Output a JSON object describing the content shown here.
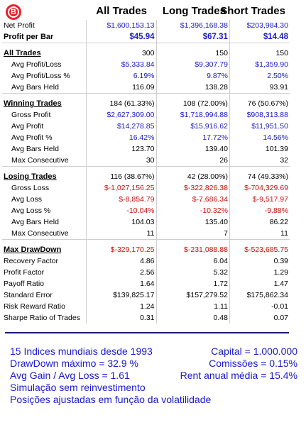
{
  "logo": {
    "letter": "B"
  },
  "headers": [
    "All Trades",
    "Long Trades",
    "Short Trades"
  ],
  "top": [
    {
      "label": "Net Profit",
      "values": [
        "$1,600,153.13",
        "$1,396,168.38",
        "$203,984.30"
      ],
      "color": "blue"
    },
    {
      "label": "Profit per Bar",
      "values": [
        "$45.94",
        "$67.31",
        "$14.48"
      ],
      "color": "blue"
    }
  ],
  "sections": [
    {
      "title": "All Trades",
      "title_values": [
        "300",
        "150",
        "150"
      ],
      "rows": [
        {
          "label": "Avg Profit/Loss",
          "values": [
            "$5,333.84",
            "$9,307.79",
            "$1,359.90"
          ],
          "color": "blue"
        },
        {
          "label": "Avg Profit/Loss %",
          "values": [
            "6.19%",
            "9.87%",
            "2.50%"
          ],
          "color": "blue"
        },
        {
          "label": "Avg Bars Held",
          "values": [
            "116.09",
            "138.28",
            "93.91"
          ],
          "color": "black"
        }
      ]
    },
    {
      "title": "Winning Trades",
      "title_values": [
        "184 (61.33%)",
        "108 (72.00%)",
        "76 (50.67%)"
      ],
      "rows": [
        {
          "label": "Gross Profit",
          "values": [
            "$2,627,309.00",
            "$1,718,994.88",
            "$908,313.88"
          ],
          "color": "blue"
        },
        {
          "label": "Avg Profit",
          "values": [
            "$14,278.85",
            "$15,916.62",
            "$11,951.50"
          ],
          "color": "blue"
        },
        {
          "label": "Avg Profit %",
          "values": [
            "16.42%",
            "17.72%",
            "14.56%"
          ],
          "color": "blue"
        },
        {
          "label": "Avg Bars Held",
          "values": [
            "123.70",
            "139.40",
            "101.39"
          ],
          "color": "black"
        },
        {
          "label": "Max Consecutive",
          "values": [
            "30",
            "26",
            "32"
          ],
          "color": "black"
        }
      ]
    },
    {
      "title": "Losing Trades",
      "title_values": [
        "116 (38.67%)",
        "42 (28.00%)",
        "74 (49.33%)"
      ],
      "rows": [
        {
          "label": "Gross Loss",
          "values": [
            "$-1,027,156.25",
            "$-322,826.38",
            "$-704,329.69"
          ],
          "color": "red"
        },
        {
          "label": "Avg Loss",
          "values": [
            "$-8,854.79",
            "$-7,686.34",
            "$-9,517.97"
          ],
          "color": "red"
        },
        {
          "label": "Avg Loss %",
          "values": [
            "-10.04%",
            "-10.32%",
            "-9.88%"
          ],
          "color": "red"
        },
        {
          "label": "Avg Bars Held",
          "values": [
            "104.03",
            "135.40",
            "86.22"
          ],
          "color": "black"
        },
        {
          "label": "Max Consecutive",
          "values": [
            "11",
            "7",
            "11"
          ],
          "color": "black"
        }
      ]
    }
  ],
  "bottom": [
    {
      "label": "Max DrawDown",
      "values": [
        "$-329,170.25",
        "$-231,088.88",
        "$-523,685.75"
      ],
      "color": "red"
    },
    {
      "label": "Recovery Factor",
      "values": [
        "4.86",
        "6.04",
        "0.39"
      ],
      "color": "black"
    },
    {
      "label": "Profit Factor",
      "values": [
        "2.56",
        "5.32",
        "1.29"
      ],
      "color": "black"
    },
    {
      "label": "Payoff Ratio",
      "values": [
        "1.64",
        "1.72",
        "1.47"
      ],
      "color": "black"
    },
    {
      "label": "Standard Error",
      "values": [
        "$139,825.17",
        "$157,279.52",
        "$175,862.34"
      ],
      "color": "black"
    },
    {
      "label": "Risk Reward Ratio",
      "values": [
        "1.24",
        "1.11",
        "-0.01"
      ],
      "color": "black"
    },
    {
      "label": "Sharpe Ratio of Trades",
      "values": [
        "0.31",
        "0.48",
        "0.07"
      ],
      "color": "black"
    }
  ],
  "notes": {
    "line1_left": "15 Indices mundiais desde 1993",
    "line1_right": "Capital = 1.000.000",
    "line2_left": "DrawDown máximo = 32.9 %",
    "line2_right": "Comissões = 0.15%",
    "line3_left": "Avg Gain / Avg Loss = 1.61",
    "line3_right": "Rent anual média = 15.4%",
    "line4": "Simulação sem reinvestimento",
    "line5": "Posições ajustadas em função da volatilidade"
  },
  "colors": {
    "blue": "#1a1acc",
    "red": "#cc1111",
    "black": "#000000"
  }
}
